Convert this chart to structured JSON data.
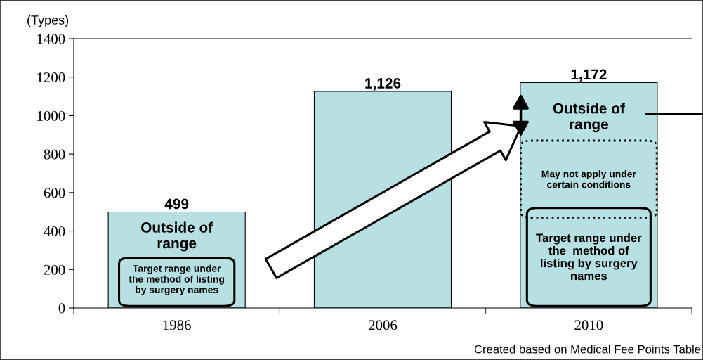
{
  "chart_data": {
    "type": "bar",
    "ylabel": "(Types)",
    "categories": [
      "1986",
      "2006",
      "2010"
    ],
    "values": [
      499,
      1126,
      1172
    ],
    "color": "#b7e0e2",
    "ylim": [
      0,
      1400
    ],
    "yticks": [
      0,
      200,
      400,
      600,
      800,
      1000,
      1200,
      1400
    ],
    "data_labels": true,
    "value_labels": [
      "499",
      "1,126",
      "1,172"
    ],
    "grid": false,
    "annotations": [
      "Outside of\nrange",
      "Target range under\nthe method of listing\nby surgery names",
      "Outside of\nrange",
      "May not apply under\ncertain conditions",
      "Target range under\nthe  method of\nlisting by surgery\nnames",
      "Created based on Medical Fee Points Table"
    ]
  }
}
